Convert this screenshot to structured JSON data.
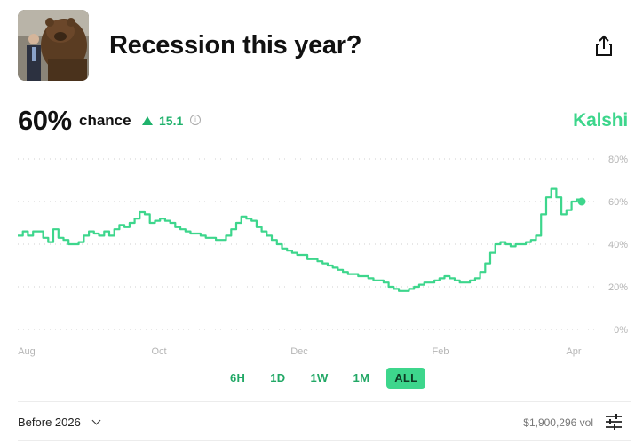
{
  "header": {
    "title": "Recession this year?",
    "image_alt": "Bear statue with man in suit"
  },
  "stats": {
    "percent": "60%",
    "chance_label": "chance",
    "delta": "15.1",
    "brand": "Kalshi"
  },
  "chart_data": {
    "type": "line",
    "x_labels": [
      "Aug",
      "Oct",
      "Dec",
      "Feb",
      "Apr"
    ],
    "y_ticks": [
      "80%",
      "60%",
      "40%",
      "20%",
      "0%"
    ],
    "ylim": [
      0,
      80
    ],
    "y_values": [
      44,
      46,
      44,
      46,
      46,
      43,
      41,
      47,
      43,
      42,
      40,
      40,
      41,
      44,
      46,
      45,
      44,
      46,
      44,
      47,
      49,
      48,
      50,
      52,
      55,
      54,
      50,
      51,
      52,
      51,
      50,
      48,
      47,
      46,
      45,
      45,
      44,
      43,
      43,
      42,
      42,
      44,
      47,
      50,
      53,
      52,
      51,
      48,
      46,
      44,
      42,
      40,
      38,
      37,
      36,
      35,
      35,
      33,
      33,
      32,
      31,
      30,
      29,
      28,
      27,
      26,
      26,
      25,
      25,
      24,
      23,
      23,
      22,
      20,
      19,
      18,
      18,
      19,
      20,
      21,
      22,
      22,
      23,
      24,
      25,
      24,
      23,
      22,
      22,
      23,
      24,
      27,
      31,
      36,
      40,
      41,
      40,
      39,
      40,
      40,
      41,
      42,
      44,
      54,
      62,
      66,
      62,
      54,
      56,
      60,
      61,
      60
    ],
    "accent": "#3dd68c",
    "grid": "dotted"
  },
  "ranges": [
    "6H",
    "1D",
    "1W",
    "1M",
    "ALL"
  ],
  "active_range": "ALL",
  "footer": {
    "period": "Before 2026",
    "volume": "$1,900,296 vol"
  }
}
